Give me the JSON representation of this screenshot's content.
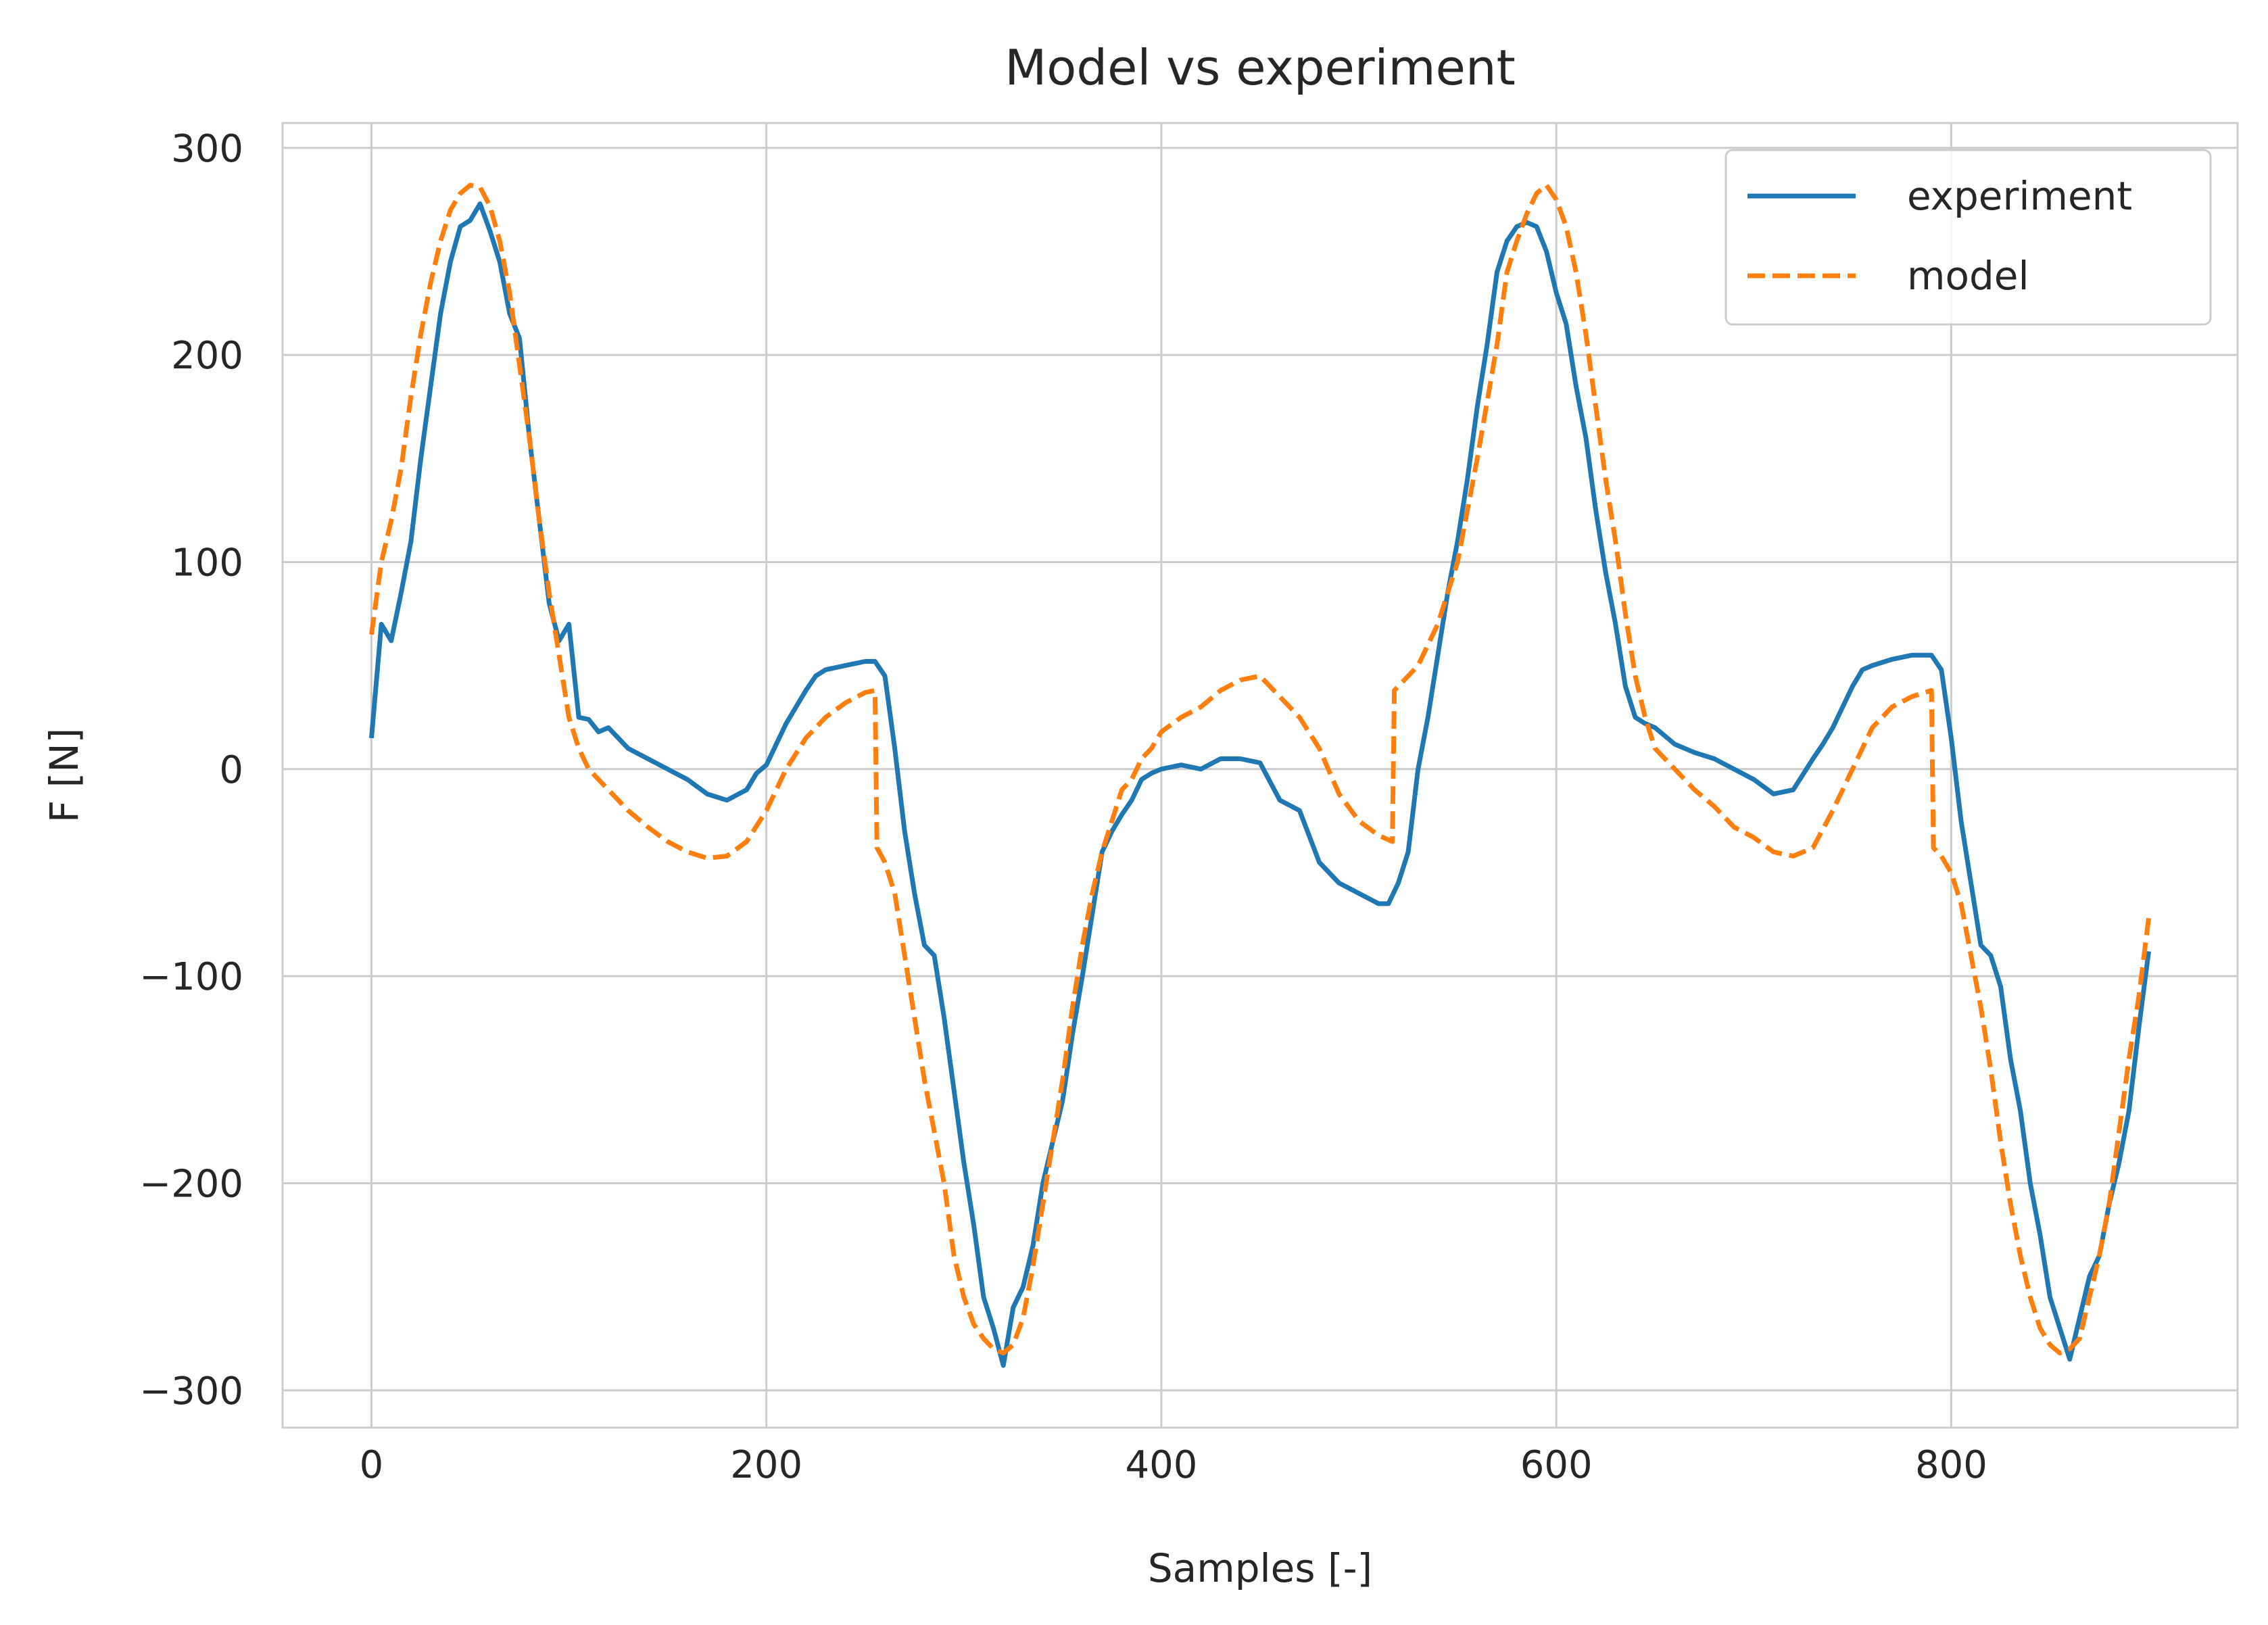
{
  "chart_data": {
    "type": "line",
    "title": "Model vs experiment",
    "xlabel": "Samples [-]",
    "ylabel": "F [N]",
    "xlim": [
      -45,
      945
    ],
    "ylim": [
      -318,
      312
    ],
    "xticks": [
      0,
      200,
      400,
      600,
      800
    ],
    "xtick_labels": [
      "0",
      "200",
      "400",
      "600",
      "800"
    ],
    "yticks": [
      -300,
      -200,
      -100,
      0,
      100,
      200,
      300
    ],
    "ytick_labels": [
      "−300",
      "−200",
      "−100",
      "0",
      "100",
      "200",
      "300"
    ],
    "grid": true,
    "legend_position": "top-right",
    "series": [
      {
        "name": "experiment",
        "color": "#1f77b4",
        "style": "solid",
        "x": [
          0,
          5,
          10,
          15,
          20,
          25,
          30,
          35,
          40,
          45,
          50,
          55,
          60,
          65,
          70,
          75,
          80,
          85,
          90,
          95,
          100,
          105,
          110,
          115,
          120,
          130,
          140,
          150,
          160,
          170,
          180,
          190,
          195,
          200,
          205,
          210,
          215,
          220,
          225,
          230,
          240,
          250,
          255,
          260,
          265,
          270,
          275,
          280,
          285,
          290,
          295,
          300,
          305,
          310,
          315,
          320,
          325,
          330,
          335,
          340,
          345,
          350,
          355,
          360,
          365,
          370,
          375,
          380,
          385,
          390,
          395,
          400,
          410,
          420,
          430,
          440,
          450,
          460,
          470,
          480,
          490,
          500,
          510,
          515,
          520,
          525,
          530,
          535,
          540,
          545,
          550,
          555,
          560,
          565,
          570,
          575,
          580,
          585,
          590,
          595,
          600,
          605,
          610,
          615,
          620,
          625,
          630,
          635,
          640,
          645,
          650,
          660,
          670,
          680,
          690,
          700,
          710,
          720,
          730,
          735,
          740,
          745,
          750,
          755,
          760,
          770,
          780,
          785,
          790,
          795,
          800,
          805,
          810,
          815,
          820,
          825,
          830,
          835,
          840,
          845,
          850,
          855,
          860,
          865,
          870,
          875,
          880,
          885,
          890,
          895,
          900
        ],
        "y": [
          15,
          70,
          62,
          85,
          110,
          150,
          185,
          220,
          245,
          262,
          265,
          273,
          260,
          245,
          220,
          208,
          160,
          120,
          80,
          62,
          70,
          25,
          24,
          18,
          20,
          10,
          5,
          0,
          -5,
          -12,
          -15,
          -10,
          -2,
          2,
          12,
          22,
          30,
          38,
          45,
          48,
          50,
          52,
          52,
          45,
          10,
          -30,
          -60,
          -85,
          -90,
          -120,
          -155,
          -190,
          -220,
          -255,
          -270,
          -288,
          -260,
          -250,
          -230,
          -200,
          -180,
          -160,
          -128,
          -100,
          -70,
          -40,
          -30,
          -22,
          -15,
          -5,
          -2,
          0,
          2,
          0,
          5,
          5,
          3,
          -15,
          -20,
          -45,
          -55,
          -60,
          -65,
          -65,
          -55,
          -40,
          0,
          25,
          55,
          85,
          110,
          140,
          175,
          205,
          240,
          255,
          262,
          264,
          262,
          250,
          230,
          215,
          185,
          160,
          125,
          95,
          70,
          40,
          25,
          22,
          20,
          12,
          8,
          5,
          0,
          -5,
          -12,
          -10,
          5,
          12,
          20,
          30,
          40,
          48,
          50,
          53,
          55,
          55,
          55,
          48,
          15,
          -25,
          -55,
          -85,
          -90,
          -105,
          -140,
          -165,
          -200,
          -225,
          -255,
          -270,
          -285,
          -265,
          -245,
          -235,
          -210,
          -190,
          -165,
          -125,
          -88
        ]
      },
      {
        "name": "model",
        "color": "#ff7f0e",
        "style": "dashed",
        "x": [
          0,
          5,
          10,
          15,
          20,
          25,
          30,
          35,
          40,
          45,
          50,
          55,
          60,
          65,
          70,
          75,
          80,
          85,
          90,
          95,
          100,
          105,
          110,
          120,
          130,
          140,
          150,
          160,
          170,
          180,
          190,
          200,
          210,
          220,
          230,
          240,
          250,
          255,
          256,
          260,
          265,
          270,
          275,
          280,
          285,
          290,
          295,
          300,
          305,
          310,
          315,
          320,
          325,
          330,
          335,
          340,
          345,
          350,
          355,
          360,
          365,
          370,
          375,
          380,
          385,
          390,
          395,
          400,
          410,
          420,
          430,
          440,
          450,
          460,
          470,
          480,
          490,
          500,
          510,
          517,
          518,
          525,
          530,
          540,
          550,
          560,
          570,
          575,
          580,
          585,
          590,
          595,
          600,
          605,
          610,
          615,
          620,
          625,
          630,
          635,
          640,
          645,
          650,
          660,
          670,
          680,
          690,
          700,
          710,
          720,
          730,
          740,
          750,
          760,
          770,
          780,
          790,
          791,
          795,
          800,
          805,
          810,
          815,
          820,
          825,
          830,
          835,
          840,
          845,
          850,
          855,
          860,
          865,
          870,
          875,
          880,
          885,
          890,
          895,
          900
        ],
        "y": [
          65,
          100,
          120,
          145,
          180,
          210,
          235,
          255,
          270,
          278,
          282,
          281,
          272,
          255,
          230,
          195,
          160,
          120,
          85,
          55,
          25,
          10,
          0,
          -10,
          -20,
          -28,
          -35,
          -40,
          -43,
          -42,
          -35,
          -20,
          0,
          15,
          25,
          32,
          37,
          38,
          -38,
          -45,
          -60,
          -90,
          -120,
          -150,
          -175,
          -200,
          -235,
          -255,
          -268,
          -275,
          -280,
          -282,
          -278,
          -265,
          -240,
          -210,
          -180,
          -150,
          -115,
          -85,
          -60,
          -40,
          -25,
          -10,
          -5,
          5,
          10,
          18,
          25,
          30,
          38,
          43,
          45,
          35,
          25,
          10,
          -12,
          -25,
          -32,
          -35,
          38,
          45,
          50,
          70,
          100,
          150,
          205,
          240,
          255,
          268,
          278,
          282,
          275,
          262,
          240,
          210,
          175,
          140,
          110,
          75,
          45,
          25,
          10,
          0,
          -10,
          -18,
          -28,
          -33,
          -40,
          -42,
          -38,
          -20,
          0,
          20,
          30,
          35,
          38,
          -38,
          -42,
          -50,
          -65,
          -90,
          -115,
          -145,
          -180,
          -210,
          -235,
          -255,
          -270,
          -278,
          -282,
          -280,
          -275,
          -255,
          -235,
          -210,
          -175,
          -140,
          -110,
          -72
        ]
      }
    ]
  }
}
